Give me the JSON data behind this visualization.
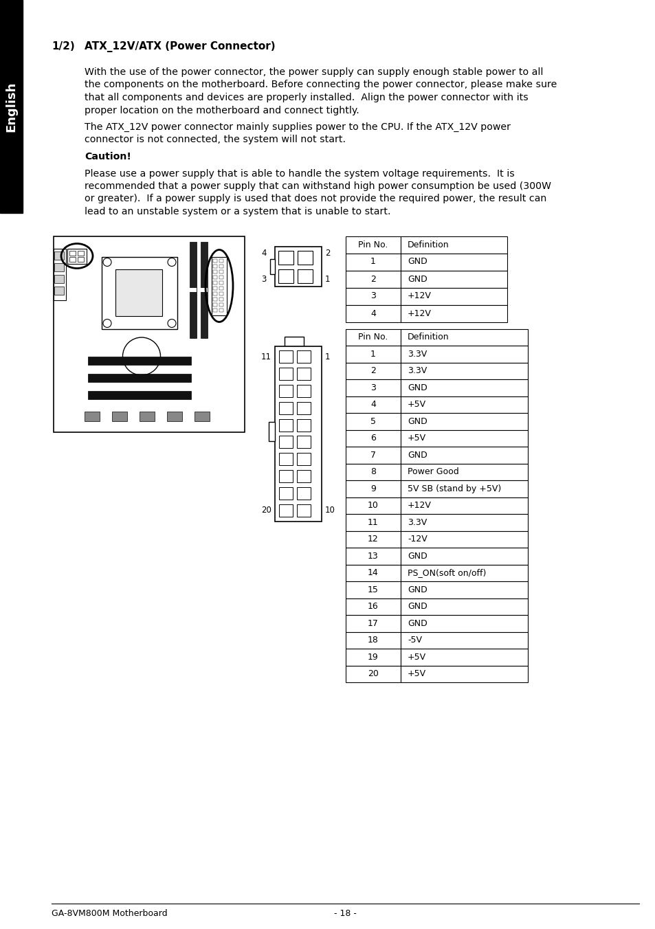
{
  "title_number": "1/2)",
  "title_text": "ATX_12V/ATX (Power Connector)",
  "body_paragraphs": [
    "With the use of the power connector, the power supply can supply enough stable power to all\nthe components on the motherboard. Before connecting the power connector, please make sure\nthat all components and devices are properly installed.  Align the power connector with its\nproper location on the motherboard and connect tightly.",
    "The ATX_12V power connector mainly supplies power to the CPU. If the ATX_12V power\nconnector is not connected, the system will not start.",
    "Caution!",
    "Please use a power supply that is able to handle the system voltage requirements.  It is\nrecommended that a power supply that can withstand high power consumption be used (300W\nor greater).  If a power supply is used that does not provide the required power, the result can\nlead to an unstable system or a system that is unable to start."
  ],
  "table1_header": [
    "Pin No.",
    "Definition"
  ],
  "table1_rows": [
    [
      "1",
      "GND"
    ],
    [
      "2",
      "GND"
    ],
    [
      "3",
      "+12V"
    ],
    [
      "4",
      "+12V"
    ]
  ],
  "table2_header": [
    "Pin No.",
    "Definition"
  ],
  "table2_rows": [
    [
      "1",
      "3.3V"
    ],
    [
      "2",
      "3.3V"
    ],
    [
      "3",
      "GND"
    ],
    [
      "4",
      "+5V"
    ],
    [
      "5",
      "GND"
    ],
    [
      "6",
      "+5V"
    ],
    [
      "7",
      "GND"
    ],
    [
      "8",
      "Power Good"
    ],
    [
      "9",
      "5V SB (stand by +5V)"
    ],
    [
      "10",
      "+12V"
    ],
    [
      "11",
      "3.3V"
    ],
    [
      "12",
      "-12V"
    ],
    [
      "13",
      "GND"
    ],
    [
      "14",
      "PS_ON(soft on/off)"
    ],
    [
      "15",
      "GND"
    ],
    [
      "16",
      "GND"
    ],
    [
      "17",
      "GND"
    ],
    [
      "18",
      "-5V"
    ],
    [
      "19",
      "+5V"
    ],
    [
      "20",
      "+5V"
    ]
  ],
  "footer_left": "GA-8VM800M Motherboard",
  "footer_center": "- 18 -",
  "sidebar_text": "English",
  "bg_color": "#ffffff",
  "sidebar_bg": "#000000",
  "sidebar_text_color": "#ffffff",
  "text_color": "#000000"
}
